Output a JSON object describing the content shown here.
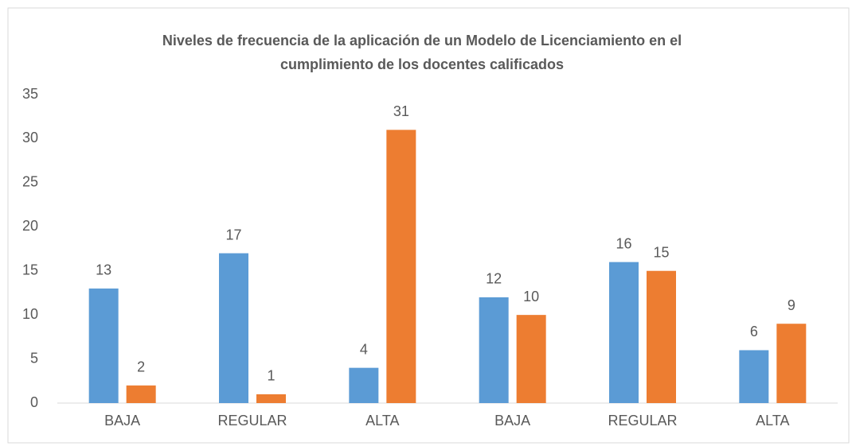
{
  "chart_data": {
    "type": "bar",
    "title": [
      "Niveles de frecuencia de la aplicación de un Modelo de Licenciamiento en el",
      "cumplimiento de los docentes calificados"
    ],
    "categories": [
      "BAJA",
      "REGULAR",
      "ALTA",
      "BAJA",
      "REGULAR",
      "ALTA"
    ],
    "series": [
      {
        "color": "#5b9bd5",
        "values": [
          13,
          17,
          4,
          12,
          16,
          6
        ]
      },
      {
        "color": "#ed7d31",
        "values": [
          2,
          1,
          31,
          10,
          15,
          9
        ]
      }
    ],
    "ylim": [
      0,
      35
    ],
    "yticks": [
      0,
      5,
      10,
      15,
      20,
      25,
      30,
      35
    ],
    "grid": false
  }
}
